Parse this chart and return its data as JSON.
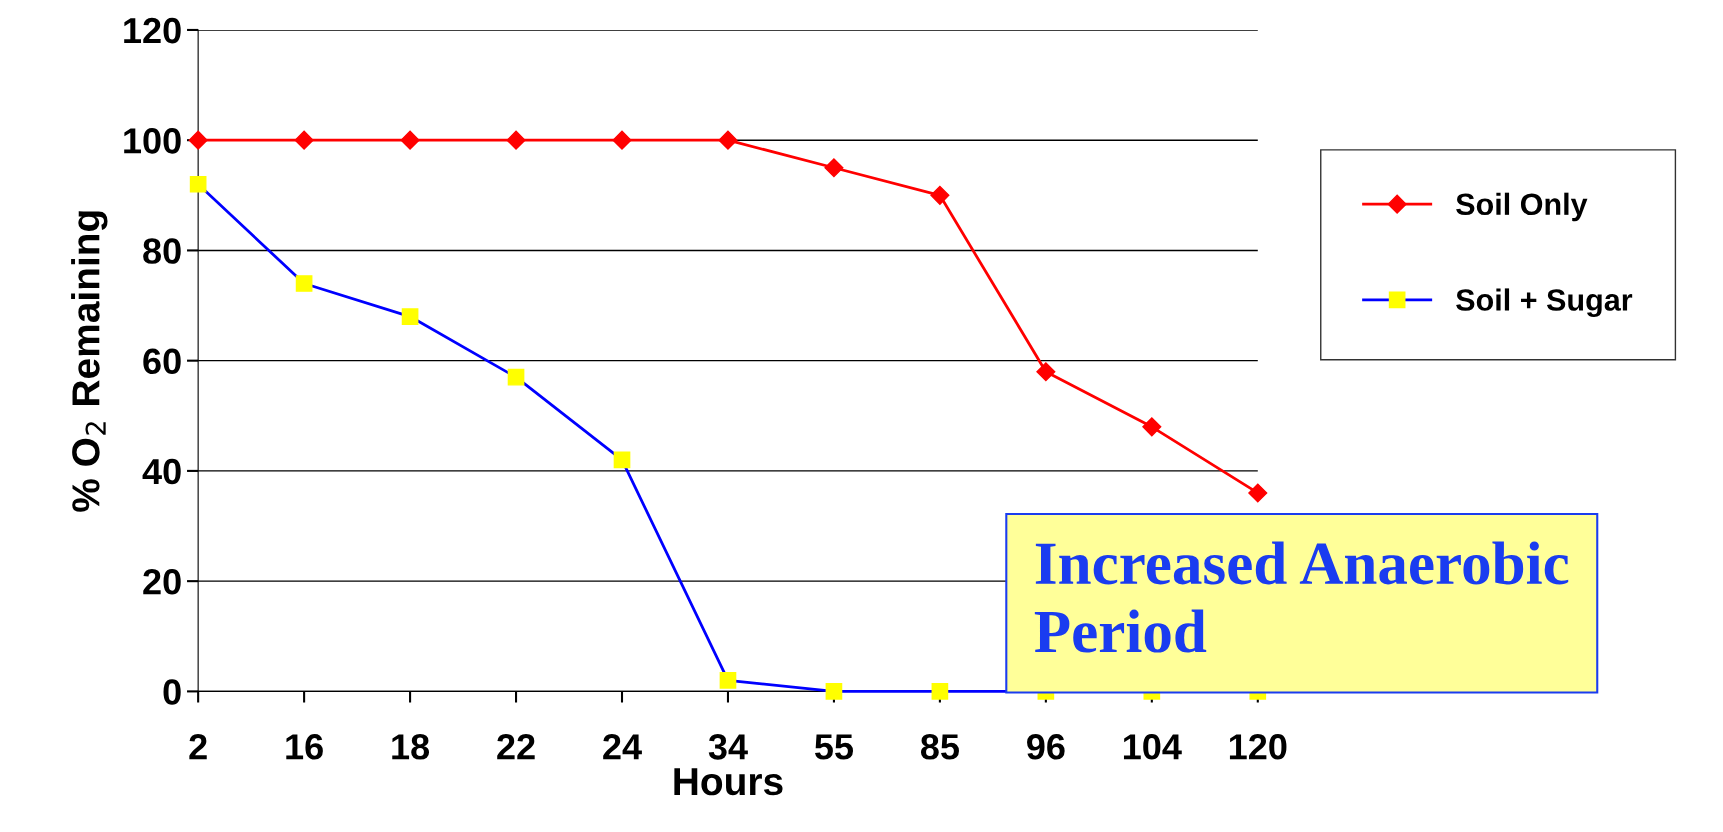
{
  "chart_data": {
    "type": "line",
    "xlabel": "Hours",
    "ylabel": "% O$_{2}$ Remaining",
    "categories": [
      "2",
      "16",
      "18",
      "22",
      "24",
      "34",
      "55",
      "85",
      "96",
      "104",
      "120"
    ],
    "series": [
      {
        "name": "Soil Only",
        "color": "#ff0000",
        "marker": "diamond",
        "values": [
          100,
          100,
          100,
          100,
          100,
          100,
          95,
          90,
          58,
          48,
          36
        ]
      },
      {
        "name": "Soil + Sugar",
        "color": "#0000ff",
        "marker": "square",
        "colors": [
          "#ffff00",
          "#ffff00",
          "#ffff00",
          "#ffff00",
          "#ffff00",
          "#ffff00",
          "#ffff00",
          "#ffff00",
          "#ffff00",
          "#ffff00",
          "#ffff00"
        ],
        "values": [
          92,
          74,
          68,
          57,
          42,
          2,
          0,
          0,
          0,
          0,
          0
        ]
      }
    ],
    "ylim": [
      0,
      120
    ],
    "yticks": [
      0,
      20,
      40,
      60,
      80,
      100,
      120
    ],
    "grid": "y",
    "legend": "right",
    "annotations": [
      "Increased Anaerobic Period"
    ]
  }
}
